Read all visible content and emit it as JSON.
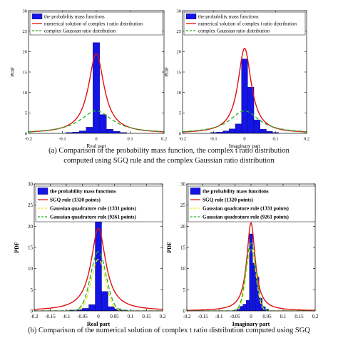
{
  "captions": {
    "a_line1": "(a)  Comparison of the probability mass function, the complex t ratio distribution",
    "a_line2": "computed using SGQ rule and the complex Gaussian ratio distribution",
    "b_line1": "(b) Comparison of the numerical solution of complex t ratio distribution computed using SGQ"
  },
  "colors": {
    "bar": "#1414e6",
    "red": "#e01010",
    "yellow": "#f2e600",
    "green": "#22b022"
  },
  "chart_data": [
    {
      "type": "bar",
      "panel": "a-left",
      "xlabel": "Real part",
      "ylabel": "PDF",
      "xlim": [
        -0.2,
        0.2
      ],
      "ylim": [
        0,
        30
      ],
      "xticks": [
        "-0.2",
        "-0.1",
        "0",
        "0.1",
        "0.2"
      ],
      "yticks": [
        "0",
        "5",
        "10",
        "15",
        "20",
        "25",
        "30"
      ],
      "legend": [
        "the probability mass functions",
        "numerical solution of complex t ratio distribution",
        "complex Gaussian ratio distribution"
      ],
      "legend_position": "top",
      "bin_width": 0.02,
      "bars": {
        "x": [
          -0.08,
          -0.06,
          -0.04,
          -0.02,
          0.0,
          0.02,
          0.04,
          0.06,
          0.08
        ],
        "y": [
          0.2,
          0.3,
          0.6,
          1.5,
          22.2,
          4.6,
          1.0,
          0.5,
          0.2
        ]
      },
      "curves": [
        {
          "color": "red",
          "dash": "none",
          "gamma": 0.028,
          "peak": 19.5,
          "center": 0.0
        },
        {
          "color": "green",
          "dash": "5,3",
          "gamma": 0.058,
          "peak": 5.5,
          "center": 0.0
        }
      ]
    },
    {
      "type": "bar",
      "panel": "a-right",
      "xlabel": "Imaginary part",
      "ylabel": "PDF",
      "xlim": [
        -0.2,
        0.2
      ],
      "ylim": [
        0,
        30
      ],
      "xticks": [
        "-0.2",
        "-0.1",
        "0",
        "0.1",
        "0.2"
      ],
      "yticks": [
        "0",
        "5",
        "10",
        "15",
        "20",
        "25",
        "30"
      ],
      "legend": [
        "the probability mass functions",
        "numerical solution of complex t ratio distribution",
        "complex Gaussian ratio distribution"
      ],
      "legend_position": "top",
      "bin_width": 0.02,
      "bars": {
        "x": [
          -0.1,
          -0.08,
          -0.06,
          -0.04,
          -0.02,
          0.0,
          0.02,
          0.04,
          0.06,
          0.08,
          0.1
        ],
        "y": [
          0.2,
          0.3,
          0.6,
          1.1,
          2.3,
          18.2,
          11.3,
          3.3,
          1.0,
          0.5,
          0.2
        ]
      },
      "curves": [
        {
          "color": "red",
          "dash": "none",
          "gamma": 0.026,
          "peak": 20.8,
          "center": 0.0
        },
        {
          "color": "green",
          "dash": "5,3",
          "gamma": 0.058,
          "peak": 5.5,
          "center": 0.0
        }
      ]
    },
    {
      "type": "bar",
      "panel": "b-left",
      "xlabel": "Real part",
      "ylabel": "PDF",
      "xlim": [
        -0.2,
        0.2
      ],
      "ylim": [
        0,
        30
      ],
      "xticks": [
        "-0.2",
        "-0.15",
        "-0.1",
        "-0.05",
        "0",
        "0.05",
        "0.1",
        "0.15",
        "0.2"
      ],
      "yticks": [
        "0",
        "5",
        "10",
        "15",
        "20",
        "25",
        "30"
      ],
      "legend": [
        "the probability mass functions",
        "SGQ rule (1320 points)",
        "Gaussian quadrature rule (1331 points)",
        "Gaussian quadrature rule (9261 points)"
      ],
      "legend_position": "top",
      "bin_width": 0.02,
      "bars": {
        "x": [
          -0.08,
          -0.06,
          -0.04,
          -0.02,
          0.0,
          0.02,
          0.04,
          0.06,
          0.08
        ],
        "y": [
          0.2,
          0.3,
          0.6,
          1.5,
          22.2,
          4.6,
          1.0,
          0.5,
          0.2
        ]
      },
      "curves": [
        {
          "color": "red",
          "dash": "none",
          "gamma": 0.028,
          "peak": 19.5,
          "center": 0.0
        },
        {
          "color": "yellow",
          "dash": "6,3",
          "sigma": 0.022,
          "peak": 12.2,
          "center": 0.0
        },
        {
          "color": "green",
          "dash": "6,3",
          "sigma": 0.024,
          "peak": 14.0,
          "center": 0.0
        }
      ]
    },
    {
      "type": "bar",
      "panel": "b-right",
      "xlabel": "Imaginary part",
      "ylabel": "PDF",
      "xlim": [
        -0.2,
        0.2
      ],
      "ylim": [
        0,
        30
      ],
      "xticks": [
        "-0.2",
        "-0.15",
        "-0.1",
        "-0.05",
        "0",
        "0.05",
        "0.1",
        "0.15",
        "0.2"
      ],
      "yticks": [
        "0",
        "5",
        "10",
        "15",
        "20",
        "25",
        "30"
      ],
      "legend": [
        "the probability mass functions",
        "SGQ rule (1320 points)",
        "Gaussian quadrature rule (1331 points)",
        "Gaussian quadrature rule (9261 points)"
      ],
      "legend_position": "top",
      "bin_width": 0.01,
      "bars": {
        "x": [
          -0.04,
          -0.03,
          -0.02,
          -0.01,
          0.0,
          0.01,
          0.02,
          0.03,
          0.04,
          0.05
        ],
        "y": [
          0.4,
          1.1,
          1.6,
          2.5,
          18.2,
          11.3,
          8.0,
          3.0,
          1.0,
          0.4
        ]
      },
      "curves": [
        {
          "color": "red",
          "dash": "none",
          "gamma": 0.016,
          "peak": 20.8,
          "center": 0.0
        },
        {
          "color": "yellow",
          "dash": "6,3",
          "sigma": 0.015,
          "peak": 14.8,
          "center": 0.0
        },
        {
          "color": "green",
          "dash": "6,3",
          "sigma": 0.016,
          "peak": 16.0,
          "center": 0.0
        }
      ]
    }
  ]
}
